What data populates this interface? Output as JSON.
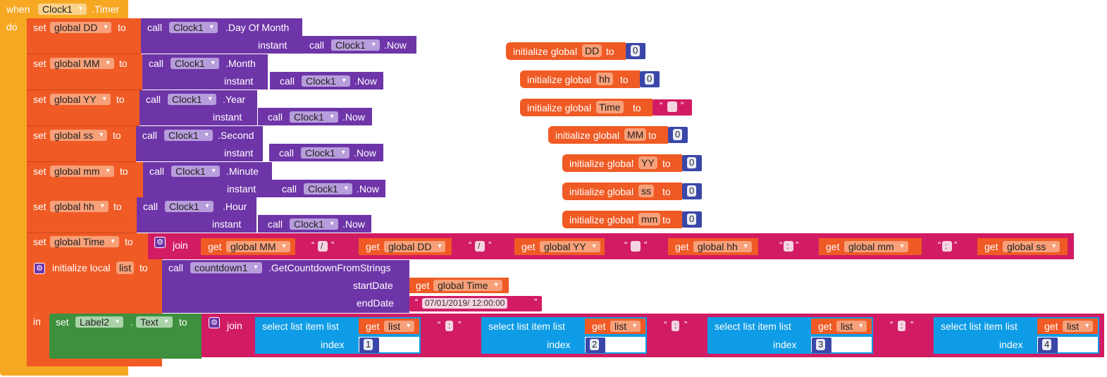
{
  "event": {
    "when_label": "when",
    "do_label": "do",
    "component": "Clock1",
    "event_name": ".Timer"
  },
  "labels": {
    "set": "set",
    "to": "to",
    "call": "call",
    "instant": "instant",
    "now": ".Now",
    "join": "join",
    "get": "get",
    "in": "in",
    "init_local": "initialize local",
    "start_date": "startDate",
    "end_date": "endDate",
    "select_list_item": "select list item  list",
    "index": "index",
    "init_global": "initialize global",
    "dot": "."
  },
  "set_blocks": [
    {
      "var": "global DD",
      "method": ".Day Of Month",
      "component": "Clock1",
      "now_component": "Clock1"
    },
    {
      "var": "global MM",
      "method": ".Month",
      "component": "Clock1",
      "now_component": "Clock1"
    },
    {
      "var": "global YY",
      "method": ".Year",
      "component": "Clock1",
      "now_component": "Clock1"
    },
    {
      "var": "global ss",
      "method": ".Second",
      "component": "Clock1",
      "now_component": "Clock1"
    },
    {
      "var": "global mm",
      "method": ".Minute",
      "component": "Clock1",
      "now_component": "Clock1"
    },
    {
      "var": "global hh",
      "method": ".Hour",
      "component": "Clock1",
      "now_component": "Clock1"
    }
  ],
  "time_block": {
    "var": "global Time",
    "parts": [
      {
        "kind": "get",
        "value": "global MM"
      },
      {
        "kind": "text",
        "value": "/"
      },
      {
        "kind": "get",
        "value": "global DD"
      },
      {
        "kind": "text",
        "value": "/"
      },
      {
        "kind": "get",
        "value": "global YY"
      },
      {
        "kind": "text",
        "value": " "
      },
      {
        "kind": "get",
        "value": "global hh"
      },
      {
        "kind": "text",
        "value": ":"
      },
      {
        "kind": "get",
        "value": "global mm"
      },
      {
        "kind": "text",
        "value": ":"
      },
      {
        "kind": "get",
        "value": "global ss"
      }
    ]
  },
  "local_block": {
    "var": "list",
    "component": "countdown1",
    "method": ".GetCountdownFromStrings",
    "start_get": "global Time",
    "end_text": "07/01/2019/ 12:00:00"
  },
  "label_block": {
    "component": "Label2",
    "property": "Text",
    "separator": ":",
    "items": [
      {
        "list": "list",
        "index": "1"
      },
      {
        "list": "list",
        "index": "2"
      },
      {
        "list": "list",
        "index": "3"
      },
      {
        "list": "list",
        "index": "4"
      }
    ]
  },
  "globals": [
    {
      "name": "DD",
      "kind": "number",
      "value": "0"
    },
    {
      "name": "hh",
      "kind": "number",
      "value": "0"
    },
    {
      "name": "Time",
      "kind": "text",
      "value": " "
    },
    {
      "name": "MM",
      "kind": "number",
      "value": "0"
    },
    {
      "name": "YY",
      "kind": "number",
      "value": "0"
    },
    {
      "name": "ss",
      "kind": "number",
      "value": "0"
    },
    {
      "name": "mm",
      "kind": "number",
      "value": "0"
    }
  ],
  "colors": {
    "control": "#f7a823",
    "variables": "#f05a24",
    "component": "#6e35a8",
    "text": "#d11c63",
    "lists": "#0e9ce6",
    "math": "#3b47a8",
    "setter": "#3e8f3e"
  }
}
